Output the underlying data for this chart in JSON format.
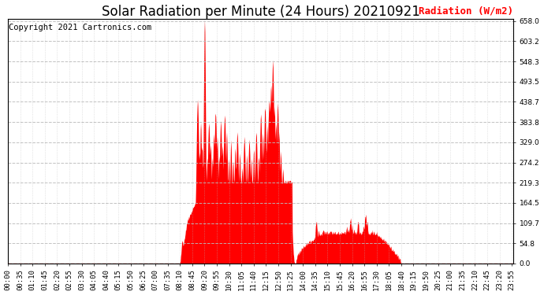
{
  "title": "Solar Radiation per Minute (24 Hours) 20210921",
  "ylabel": "Radiation (W/m2)",
  "copyright_text": "Copyright 2021 Cartronics.com",
  "ylabel_color": "#ff0000",
  "title_color": "#000000",
  "fill_color": "#ff0000",
  "bg_color": "#ffffff",
  "dashed_line_color": "#ff0000",
  "grid_color_h": "#cccccc",
  "grid_color_v": "#cccccc",
  "y_tick_values": [
    0.0,
    54.8,
    109.7,
    164.5,
    219.3,
    274.2,
    329.0,
    383.8,
    438.7,
    493.5,
    548.3,
    603.2,
    658.0
  ],
  "ylim": [
    0.0,
    658.0
  ],
  "x_tick_labels": [
    "00:00",
    "00:35",
    "01:10",
    "01:45",
    "02:20",
    "02:55",
    "03:30",
    "04:05",
    "04:40",
    "05:15",
    "05:50",
    "06:25",
    "07:00",
    "07:35",
    "08:10",
    "08:45",
    "09:20",
    "09:55",
    "10:30",
    "11:05",
    "11:40",
    "12:15",
    "12:50",
    "13:25",
    "14:00",
    "14:35",
    "15:10",
    "15:45",
    "16:20",
    "16:55",
    "17:30",
    "18:05",
    "18:40",
    "19:15",
    "19:50",
    "20:25",
    "21:00",
    "21:35",
    "22:10",
    "22:45",
    "23:20",
    "23:55"
  ],
  "total_minutes": 1440,
  "font_size_title": 12,
  "font_size_ticks": 6.5,
  "font_size_ylabel": 9,
  "font_size_copyright": 7.5
}
